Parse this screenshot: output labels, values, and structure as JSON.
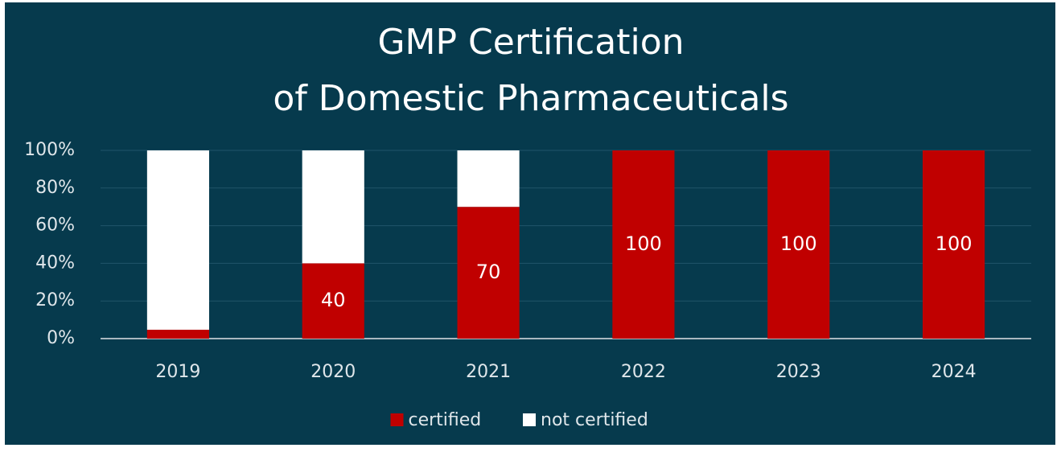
{
  "chart_data": {
    "type": "stacked_bar",
    "stacking": "percent",
    "title": [
      "GMP Certification",
      "of  Domestic Pharmaceuticals"
    ],
    "categories": [
      "2019",
      "2020",
      "2021",
      "2022",
      "2023",
      "2024"
    ],
    "series": [
      {
        "name": "certified",
        "color": "#c00000",
        "values": [
          9,
          40,
          70,
          100,
          100,
          100
        ]
      },
      {
        "name": "not certified",
        "color": "#ffffff",
        "values": [
          182,
          60,
          30,
          0,
          0,
          0
        ]
      }
    ],
    "ylim": [
      0,
      100
    ],
    "yticks": [
      {
        "value": 0,
        "label": "0%"
      },
      {
        "value": 20,
        "label": "20%"
      },
      {
        "value": 40,
        "label": "40%"
      },
      {
        "value": 60,
        "label": "60%"
      },
      {
        "value": 80,
        "label": "80%"
      },
      {
        "value": 100,
        "label": "100%"
      }
    ],
    "grid": true,
    "legend": "bottom",
    "data_labels_series": 0
  }
}
